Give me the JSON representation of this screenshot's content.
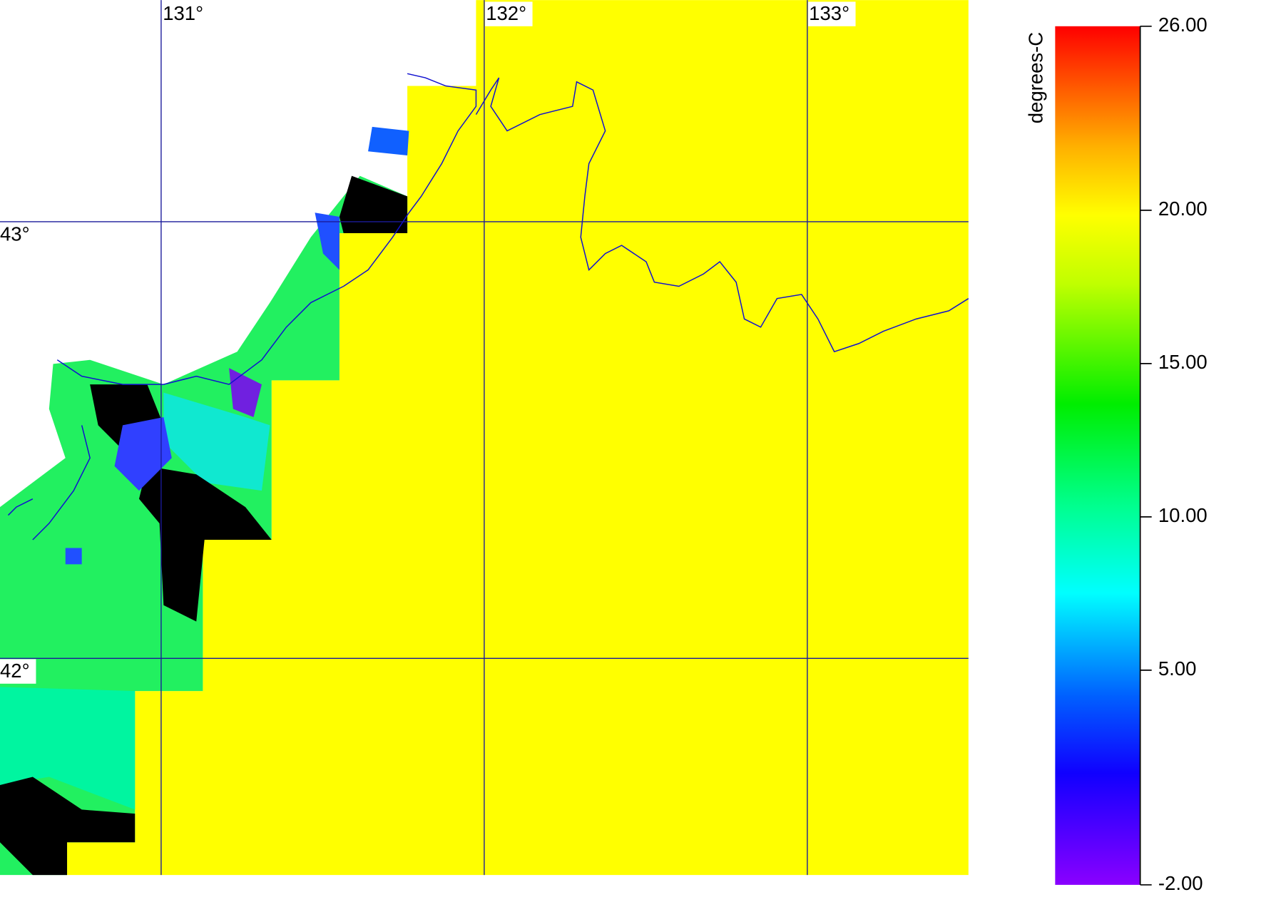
{
  "map": {
    "lon_ticks": [
      {
        "value": 131,
        "label": "131°"
      },
      {
        "value": 132,
        "label": "132°"
      },
      {
        "value": 133,
        "label": "133°"
      }
    ],
    "lat_ticks": [
      {
        "value": 43,
        "label": "43°"
      },
      {
        "value": 42,
        "label": "42°"
      }
    ]
  },
  "colorbar": {
    "label": "degrees-C",
    "ticks": [
      {
        "value": 26,
        "label": "26.00"
      },
      {
        "value": 20,
        "label": "20.00"
      },
      {
        "value": 15,
        "label": "15.00"
      },
      {
        "value": 10,
        "label": "10.00"
      },
      {
        "value": 5,
        "label": "5.00"
      },
      {
        "value": -2,
        "label": "-2.00"
      }
    ]
  }
}
